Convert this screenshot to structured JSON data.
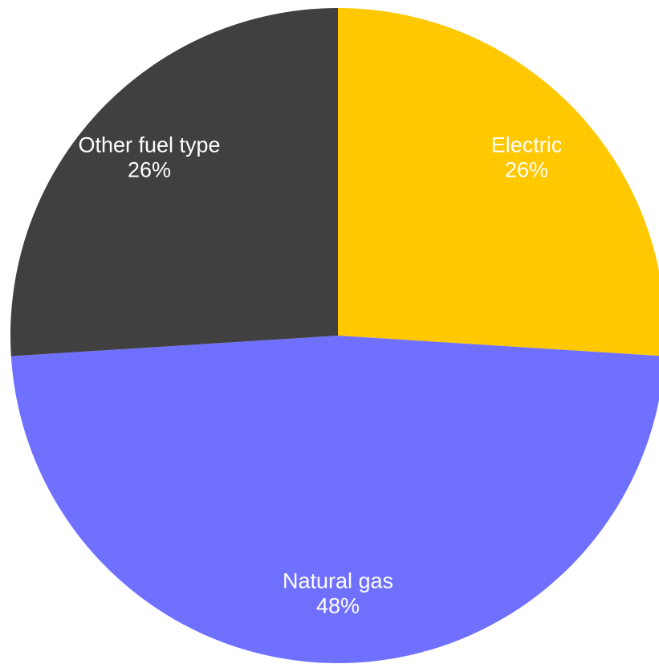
{
  "chart_data": {
    "type": "pie",
    "categories": [
      "Electric",
      "Natural gas",
      "Other fuel type"
    ],
    "values": [
      26,
      48,
      26
    ],
    "value_labels": [
      "26%",
      "48%",
      "26%"
    ],
    "colors": [
      "#ffc800",
      "#7070ff",
      "#404040"
    ],
    "label_colors": [
      "#ffffff",
      "#ffffff",
      "#ffffff"
    ]
  }
}
